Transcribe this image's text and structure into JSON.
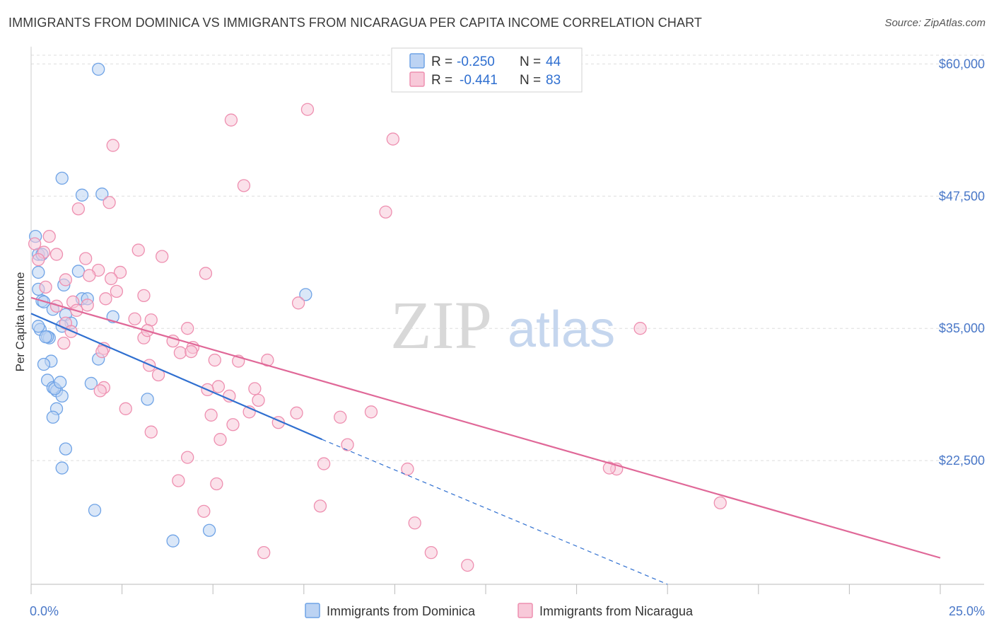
{
  "header": {
    "title": "IMMIGRANTS FROM DOMINICA VS IMMIGRANTS FROM NICARAGUA PER CAPITA INCOME CORRELATION CHART",
    "source": "Source: ZipAtlas.com"
  },
  "watermark": {
    "zip": "ZIP",
    "atlas": "atlas"
  },
  "colors": {
    "dominica": "#6fa3e6",
    "dominica_fill": "#bcd3f3",
    "dominica_line": "#2f6fd0",
    "nicaragua": "#ee8fb0",
    "nicaragua_fill": "#f8c9d9",
    "nicaragua_line": "#e06898",
    "tick_label": "#4a78c8",
    "grid": "#dddddd"
  },
  "legend": {
    "r_label": "R =",
    "n_label": "N =",
    "dominica_r": "-0.250",
    "dominica_n": "44",
    "nicaragua_r": "-0.441",
    "nicaragua_n": "83"
  },
  "chart_data": {
    "type": "scatter",
    "title": "IMMIGRANTS FROM DOMINICA VS IMMIGRANTS FROM NICARAGUA PER CAPITA INCOME CORRELATION CHART",
    "xlabel": "",
    "ylabel": "Per Capita Income",
    "xlim": [
      0,
      25
    ],
    "ylim": [
      10800,
      61500
    ],
    "x_tick_labels": [
      "0.0%",
      "25.0%"
    ],
    "y_ticks": [
      22500,
      35000,
      47500,
      60000
    ],
    "y_tick_labels": [
      "$22,500",
      "$35,000",
      "$47,500",
      "$60,000"
    ],
    "grid": true,
    "series": [
      {
        "name": "Immigrants from Dominica",
        "x": [
          1.85,
          0.85,
          1.4,
          1.95,
          0.12,
          1.3,
          0.2,
          0.9,
          1.4,
          0.3,
          1.55,
          0.2,
          0.35,
          0.6,
          0.95,
          1.1,
          2.25,
          0.25,
          0.5,
          0.85,
          0.2,
          0.45,
          0.4,
          0.55,
          0.35,
          0.45,
          0.6,
          0.7,
          0.85,
          0.7,
          1.65,
          0.6,
          0.65,
          0.85,
          3.2,
          7.55,
          0.8,
          1.75,
          0.95,
          1.85,
          3.9,
          4.9,
          0.2,
          0.3
        ],
        "y": [
          59500,
          49200,
          47600,
          47700,
          43700,
          40400,
          40300,
          39100,
          37800,
          37600,
          37800,
          38700,
          37500,
          36800,
          36300,
          35500,
          36100,
          34900,
          34100,
          35200,
          35200,
          34200,
          34200,
          31900,
          31600,
          30100,
          29400,
          29100,
          28600,
          27400,
          29800,
          26600,
          29300,
          21800,
          28300,
          38200,
          29900,
          17800,
          23600,
          32100,
          14900,
          15900,
          42000,
          42000
        ]
      },
      {
        "name": "Immigrants from Nicaragua",
        "x": [
          7.6,
          5.5,
          9.95,
          2.25,
          5.85,
          9.75,
          2.15,
          1.3,
          0.5,
          0.1,
          0.35,
          0.2,
          0.7,
          2.95,
          1.85,
          3.6,
          1.5,
          2.45,
          4.8,
          1.6,
          0.95,
          2.2,
          2.35,
          3.1,
          0.4,
          1.15,
          1.25,
          0.7,
          1.55,
          3.3,
          7.35,
          2.05,
          0.95,
          1.1,
          0.9,
          4.3,
          3.1,
          3.2,
          4.45,
          3.9,
          2.0,
          4.1,
          4.4,
          1.95,
          5.05,
          5.7,
          3.25,
          6.5,
          3.5,
          5.15,
          2.0,
          4.85,
          6.15,
          1.9,
          5.45,
          6.25,
          2.6,
          9.35,
          6.0,
          7.3,
          4.95,
          8.5,
          6.8,
          5.55,
          3.3,
          8.7,
          5.2,
          4.3,
          4.05,
          5.1,
          8.05,
          10.35,
          10.55,
          7.95,
          4.75,
          6.4,
          16.1,
          16.75,
          15.9,
          18.95,
          11.0,
          12.0,
          2.85
        ],
        "y": [
          55700,
          54700,
          52900,
          52300,
          48500,
          46000,
          46900,
          46300,
          43700,
          43000,
          42200,
          41500,
          42000,
          42400,
          40500,
          41800,
          41600,
          40300,
          40200,
          40000,
          39600,
          39700,
          38500,
          38100,
          38900,
          37500,
          36700,
          37100,
          37200,
          35800,
          37400,
          37800,
          35500,
          34700,
          33600,
          35000,
          34100,
          34800,
          33200,
          33800,
          33100,
          32700,
          32800,
          32800,
          32000,
          31900,
          31500,
          32000,
          30600,
          29500,
          29400,
          29200,
          29300,
          29100,
          28600,
          28200,
          27400,
          27100,
          27100,
          27000,
          26800,
          26600,
          26100,
          25900,
          25200,
          24000,
          24500,
          22800,
          20600,
          20300,
          22200,
          21700,
          16600,
          18200,
          17700,
          13800,
          21700,
          35000,
          21800,
          18500,
          13800,
          12600,
          35900
        ]
      }
    ],
    "trend_lines": [
      {
        "name": "Immigrants from Dominica",
        "x": [
          0.0,
          8.0
        ],
        "y": [
          36400,
          24500
        ],
        "dashed_extension_x": [
          8.0,
          17.5
        ],
        "dashed_extension_y": [
          24500,
          10800
        ]
      },
      {
        "name": "Immigrants from Nicaragua",
        "x": [
          0.0,
          25.0
        ],
        "y": [
          37900,
          13300
        ]
      }
    ]
  },
  "bottom_legend": {
    "dominica_label": "Immigrants from Dominica",
    "nicaragua_label": "Immigrants from Nicaragua"
  }
}
